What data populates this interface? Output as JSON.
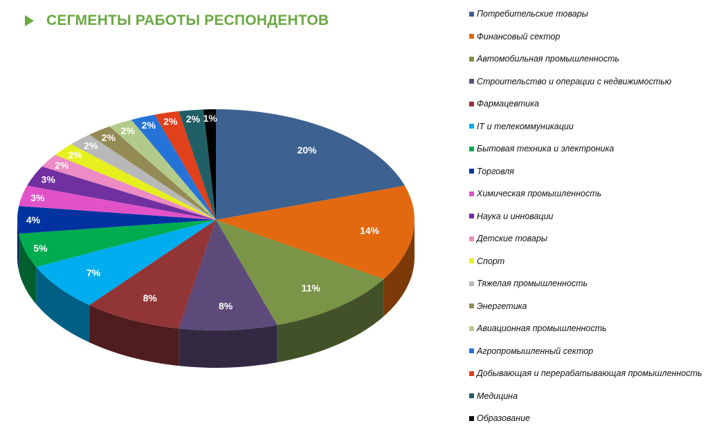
{
  "header": {
    "title": "СЕГМЕНТЫ РАБОТЫ РЕСПОНДЕНТОВ"
  },
  "chart_data": {
    "type": "pie",
    "title": "СЕГМЕНТЫ РАБОТЫ РЕСПОНДЕНТОВ",
    "style": "3d",
    "legend_position": "right",
    "categories": [
      "Потребительские товары",
      "Финансовый сектор",
      "Автомобильная промышленность",
      "Строительство и операции с недвижимостью",
      "Фармацевтика",
      "IT и телекоммуникации",
      "Бытовая техника и электроника",
      "Торговля",
      "Химическая промышленность",
      "Наука и инновации",
      "Детские товары",
      "Спорт",
      "Тяжелая промышленность",
      "Энергетика",
      "Авиационная промышленность",
      "Агропромышленный сектор",
      "Добывающая и перерабатывающая промышленность",
      "Медицина",
      "Образование"
    ],
    "values": [
      20,
      14,
      11,
      8,
      8,
      7,
      5,
      4,
      3,
      3,
      2,
      2,
      2,
      2,
      2,
      2,
      2,
      2,
      1
    ],
    "labels": [
      "20%",
      "14%",
      "11%",
      "8%",
      "8%",
      "7%",
      "5%",
      "4%",
      "3%",
      "3%",
      "2%",
      "2%",
      "2%",
      "2%",
      "2%",
      "2%",
      "2%",
      "2%",
      "1%"
    ],
    "colors": [
      "#3d6190",
      "#e2690f",
      "#7a9448",
      "#5e4a7a",
      "#923537",
      "#00aeef",
      "#00ac50",
      "#0033a0",
      "#e152c9",
      "#7030a0",
      "#ec8bc4",
      "#e6f01e",
      "#b8b8b8",
      "#948a54",
      "#b3cb8a",
      "#2673d8",
      "#e0401b",
      "#215f66",
      "#000000"
    ]
  }
}
